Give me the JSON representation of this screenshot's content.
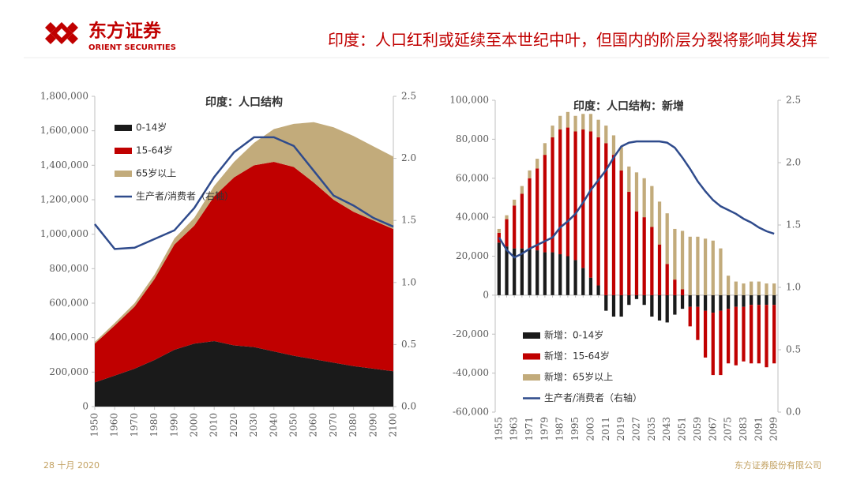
{
  "header": {
    "brand": "东方证券",
    "brand_en": "ORIENT SECURITIES",
    "title": "印度：人口红利或延续至本世纪中叶，但国内的阶层分裂将影响其发挥"
  },
  "footer": {
    "date": "28 十月 2020",
    "company": "东方证券股份有限公司"
  },
  "chart_data": [
    {
      "type": "area",
      "title": "印度：人口结构",
      "x": [
        1950,
        1960,
        1970,
        1980,
        1990,
        2000,
        2010,
        2020,
        2030,
        2040,
        2050,
        2060,
        2070,
        2080,
        2090,
        2100
      ],
      "xlim": [
        1950,
        2100
      ],
      "xticks": [
        1950,
        1960,
        1970,
        1980,
        1990,
        2000,
        2010,
        2020,
        2030,
        2040,
        2050,
        2060,
        2070,
        2080,
        2090,
        2100
      ],
      "ylim": [
        0,
        1800000
      ],
      "yticks": [
        0,
        {
          "value": 200000,
          "label": "200,000"
        },
        {
          "value": 400000,
          "label": "400,000"
        },
        {
          "value": 600000,
          "label": "600,000"
        },
        {
          "value": 800000,
          "label": "800,000"
        },
        {
          "value": 1000000,
          "label": "1,000,000"
        },
        {
          "value": 1200000,
          "label": "1,200,000"
        },
        {
          "value": 1400000,
          "label": "1,400,000"
        },
        {
          "value": 1600000,
          "label": "1,600,000"
        },
        {
          "value": 1800000,
          "label": "1,800,000"
        }
      ],
      "y2lim": [
        0,
        2.5
      ],
      "y2ticks": [
        {
          "value": 0,
          "label": "0.0"
        },
        0.5,
        {
          "value": 1,
          "label": "1.0"
        },
        1.5,
        {
          "value": 2,
          "label": "2.0"
        },
        2.5
      ],
      "series": [
        {
          "name": "0-14岁",
          "color": "#1a1a1a",
          "values": [
            140000,
            180000,
            220000,
            270000,
            330000,
            365000,
            380000,
            355000,
            345000,
            320000,
            295000,
            275000,
            255000,
            235000,
            220000,
            205000
          ]
        },
        {
          "name": "15-64岁",
          "color": "#c00000",
          "values": [
            225000,
            290000,
            360000,
            470000,
            610000,
            685000,
            840000,
            975000,
            1055000,
            1100000,
            1095000,
            1025000,
            945000,
            895000,
            860000,
            825000
          ]
        },
        {
          "name": "65岁以上",
          "color": "#c2ab7b",
          "values": [
            10000,
            15000,
            20000,
            25000,
            35000,
            45000,
            60000,
            90000,
            130000,
            190000,
            250000,
            350000,
            420000,
            440000,
            430000,
            420000
          ]
        },
        {
          "name": "生产者/消费者（右轴）",
          "color": "#2f4b8c",
          "axis": "y2",
          "values": [
            1.47,
            1.27,
            1.28,
            1.35,
            1.42,
            1.6,
            1.85,
            2.05,
            2.17,
            2.17,
            2.1,
            1.9,
            1.7,
            1.62,
            1.52,
            1.45
          ]
        }
      ]
    },
    {
      "type": "bar",
      "title": "印度：人口结构：新增",
      "categories": [
        "1955",
        null,
        "1963",
        null,
        "1971",
        null,
        "1979",
        null,
        "1987",
        null,
        "1995",
        null,
        "2003",
        null,
        "2011",
        null,
        "2019",
        null,
        "2027",
        null,
        "2035",
        null,
        "2043",
        null,
        "2051",
        null,
        "2059",
        null,
        "2067",
        null,
        "2075",
        null,
        "2083",
        null,
        "2091",
        null,
        "2099"
      ],
      "ylim": [
        -60000,
        100000
      ],
      "yticks": [
        {
          "value": -60000,
          "label": "-60,000"
        },
        {
          "value": -40000,
          "label": "-40,000"
        },
        {
          "value": -20000,
          "label": "-20,000"
        },
        0,
        {
          "value": 20000,
          "label": "20,000"
        },
        {
          "value": 40000,
          "label": "40,000"
        },
        {
          "value": 60000,
          "label": "60,000"
        },
        {
          "value": 80000,
          "label": "80,000"
        },
        {
          "value": 100000,
          "label": "100,000"
        }
      ],
      "y2lim": [
        0,
        2.5
      ],
      "y2ticks": [
        {
          "value": 0,
          "label": "0.0"
        },
        0.5,
        {
          "value": 1,
          "label": "1.0"
        },
        1.5,
        {
          "value": 2,
          "label": "2.0"
        },
        2.5
      ],
      "series": [
        {
          "name": "新增：0-14岁",
          "color": "#1a1a1a",
          "values": [
            27000,
            25000,
            24000,
            24000,
            24000,
            23000,
            22000,
            22000,
            21000,
            20000,
            18000,
            14000,
            9000,
            5000,
            -8000,
            -11000,
            -11000,
            -5000,
            -2000,
            -5000,
            -11000,
            -13000,
            -14000,
            -10000,
            -7000,
            -6000,
            -6000,
            -8000,
            -9000,
            -8000,
            -7000,
            -6000,
            -6000,
            -5000,
            -5000,
            -5000,
            -5000
          ]
        },
        {
          "name": "新增：15-64岁",
          "color": "#c00000",
          "values": [
            5000,
            14000,
            22000,
            28000,
            36000,
            42000,
            50000,
            59000,
            64000,
            66000,
            66000,
            71000,
            75000,
            76000,
            78000,
            72000,
            64000,
            53000,
            43000,
            40000,
            35000,
            26000,
            16000,
            8000,
            3000,
            -10000,
            -17000,
            -24000,
            -32000,
            -33000,
            -28000,
            -30000,
            -28000,
            -30000,
            -30000,
            -32000,
            -30000
          ]
        },
        {
          "name": "新增：65岁以上",
          "color": "#c2ab7b",
          "values": [
            2000,
            2000,
            3000,
            4000,
            4000,
            5000,
            6000,
            6000,
            7000,
            8000,
            8000,
            8000,
            9000,
            9000,
            9000,
            10000,
            12000,
            13000,
            20000,
            20000,
            21000,
            22000,
            26000,
            26000,
            30000,
            30000,
            30000,
            29000,
            28000,
            24000,
            10000,
            7000,
            6000,
            7000,
            7000,
            6000,
            6000
          ]
        },
        {
          "name": "生产者/消费者（右轴）",
          "color": "#2f4b8c",
          "axis": "y2",
          "values": [
            1.4,
            1.3,
            1.24,
            1.27,
            1.31,
            1.34,
            1.37,
            1.4,
            1.48,
            1.53,
            1.59,
            1.68,
            1.78,
            1.86,
            1.94,
            2.04,
            2.13,
            2.16,
            2.17,
            2.17,
            2.17,
            2.17,
            2.16,
            2.12,
            2.04,
            1.95,
            1.85,
            1.77,
            1.7,
            1.65,
            1.62,
            1.59,
            1.55,
            1.52,
            1.48,
            1.45,
            1.43
          ]
        }
      ]
    }
  ]
}
